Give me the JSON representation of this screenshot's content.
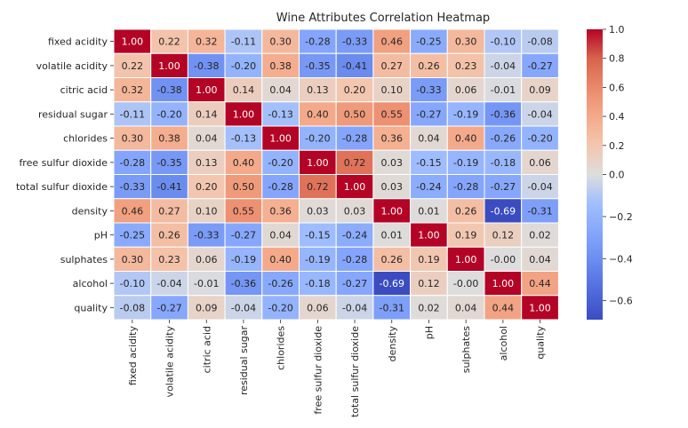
{
  "chart_data": {
    "type": "heatmap",
    "title": "Wine Attributes Correlation Heatmap",
    "xlabel": "",
    "ylabel": "",
    "rows": [
      "fixed acidity",
      "volatile acidity",
      "citric acid",
      "residual sugar",
      "chlorides",
      "free sulfur dioxide",
      "total sulfur dioxide",
      "density",
      "pH",
      "sulphates",
      "alcohol",
      "quality"
    ],
    "columns": [
      "fixed acidity",
      "volatile acidity",
      "citric acid",
      "residual sugar",
      "chlorides",
      "free sulfur dioxide",
      "total sulfur dioxide",
      "density",
      "pH",
      "sulphates",
      "alcohol",
      "quality"
    ],
    "values": [
      [
        1.0,
        0.22,
        0.32,
        -0.11,
        0.3,
        -0.28,
        -0.33,
        0.46,
        -0.25,
        0.3,
        -0.1,
        -0.08
      ],
      [
        0.22,
        1.0,
        -0.38,
        -0.2,
        0.38,
        -0.35,
        -0.41,
        0.27,
        0.26,
        0.23,
        -0.04,
        -0.27
      ],
      [
        0.32,
        -0.38,
        1.0,
        0.14,
        0.04,
        0.13,
        0.2,
        0.1,
        -0.33,
        0.06,
        -0.01,
        0.09
      ],
      [
        -0.11,
        -0.2,
        0.14,
        1.0,
        -0.13,
        0.4,
        0.5,
        0.55,
        -0.27,
        -0.19,
        -0.36,
        -0.04
      ],
      [
        0.3,
        0.38,
        0.04,
        -0.13,
        1.0,
        -0.2,
        -0.28,
        0.36,
        0.04,
        0.4,
        -0.26,
        -0.2
      ],
      [
        -0.28,
        -0.35,
        0.13,
        0.4,
        -0.2,
        1.0,
        0.72,
        0.03,
        -0.15,
        -0.19,
        -0.18,
        0.06
      ],
      [
        -0.33,
        -0.41,
        0.2,
        0.5,
        -0.28,
        0.72,
        1.0,
        0.03,
        -0.24,
        -0.28,
        -0.27,
        -0.04
      ],
      [
        0.46,
        0.27,
        0.1,
        0.55,
        0.36,
        0.03,
        0.03,
        1.0,
        0.01,
        0.26,
        -0.69,
        -0.31
      ],
      [
        -0.25,
        0.26,
        -0.33,
        -0.27,
        0.04,
        -0.15,
        -0.24,
        0.01,
        1.0,
        0.19,
        0.12,
        0.02
      ],
      [
        0.3,
        0.23,
        0.06,
        -0.19,
        0.4,
        -0.19,
        -0.28,
        0.26,
        0.19,
        1.0,
        -0.0,
        0.04
      ],
      [
        -0.1,
        -0.04,
        -0.01,
        -0.36,
        -0.26,
        -0.18,
        -0.27,
        -0.69,
        0.12,
        -0.0,
        1.0,
        0.44
      ],
      [
        -0.08,
        -0.27,
        0.09,
        -0.04,
        -0.2,
        0.06,
        -0.04,
        -0.31,
        0.02,
        0.04,
        0.44,
        1.0
      ]
    ],
    "colormap": "coolwarm",
    "vmin": -0.69,
    "vmax": 1.0,
    "colorbar_ticks": [
      1.0,
      0.8,
      0.6,
      0.4,
      0.2,
      0.0,
      -0.2,
      -0.4,
      -0.6
    ],
    "colorbar_tick_labels": [
      "1.0",
      "0.8",
      "0.6",
      "0.4",
      "0.2",
      "0.0",
      "−0.2",
      "−0.4",
      "−0.6"
    ],
    "legend": "colorbar right",
    "grid": false,
    "colors": {
      "cell_border": "#ffffff",
      "text_dark": "#262626",
      "text_light": "#ffffff"
    }
  }
}
